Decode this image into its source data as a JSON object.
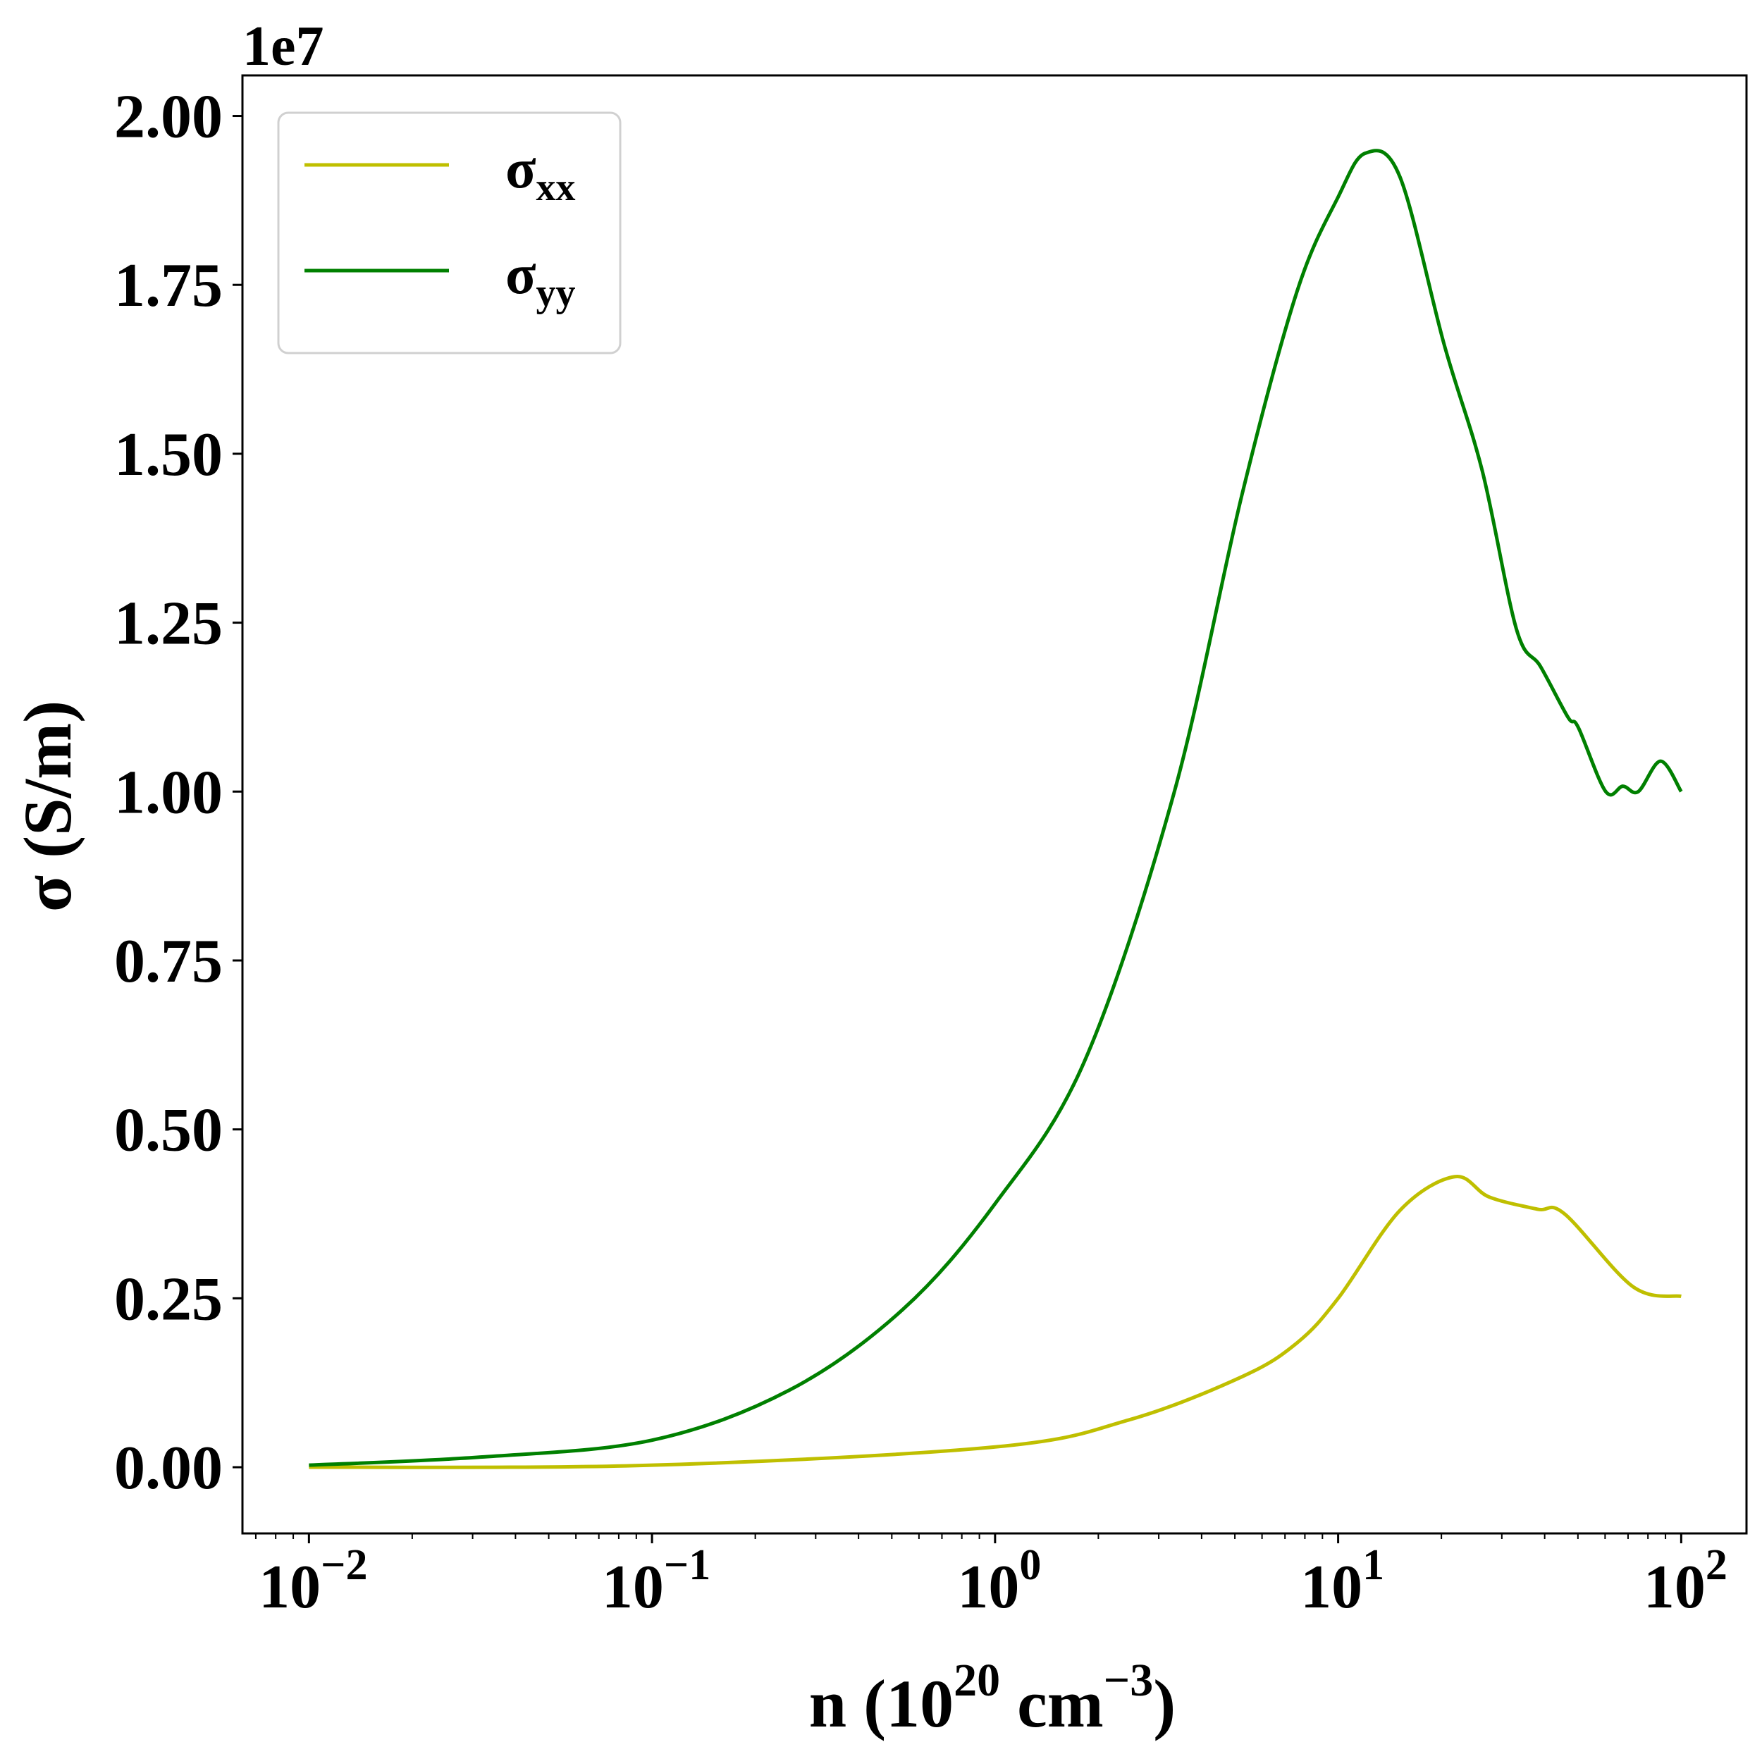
{
  "chart_data": {
    "type": "line",
    "title": "",
    "xlabel": {
      "main": "n (10",
      "sup1": "20",
      "mid": " cm",
      "sup2": "−3",
      "end": ")"
    },
    "ylabel": "σ (S/m)",
    "y_offset_label": "1e7",
    "xscale": "log",
    "xlim": [
      0.0064,
      155
    ],
    "ylim": [
      -0.098,
      2.06
    ],
    "y_ticks": [
      0,
      0.25,
      0.5,
      0.75,
      1.0,
      1.25,
      1.5,
      1.75,
      2.0
    ],
    "y_tick_labels": [
      "0.00",
      "0.25",
      "0.50",
      "0.75",
      "1.00",
      "1.25",
      "1.50",
      "1.75",
      "2.00"
    ],
    "x_ticks_exp": [
      -2,
      -1,
      0,
      1,
      2
    ],
    "x_tick_labels": [
      {
        "base": "10",
        "exp": "−2"
      },
      {
        "base": "10",
        "exp": "−1"
      },
      {
        "base": "10",
        "exp": "0"
      },
      {
        "base": "10",
        "exp": "1"
      },
      {
        "base": "10",
        "exp": "2"
      }
    ],
    "grid": false,
    "legend_position": "top-left",
    "series": [
      {
        "name": "σ",
        "sub": "xx",
        "color": "#bfbf00",
        "log10_x": [
          -2,
          -1,
          0,
          0.39,
          0.72,
          0.88,
          1.0,
          1.18,
          1.34,
          1.44,
          1.58,
          1.66,
          1.86,
          2.0
        ],
        "y": [
          0.0,
          0.003,
          0.03,
          0.07,
          0.134,
          0.184,
          0.25,
          0.38,
          0.43,
          0.4,
          0.382,
          0.375,
          0.267,
          0.253
        ]
      },
      {
        "name": "σ",
        "sub": "yy",
        "color": "#008000",
        "log10_x": [
          -2,
          -1.5,
          -1.0,
          -0.6,
          -0.27,
          0,
          0.26,
          0.52,
          0.72,
          0.88,
          1.0,
          1.08,
          1.18,
          1.31,
          1.42,
          1.52,
          1.59,
          1.67,
          1.7,
          1.78,
          1.83,
          1.875,
          1.94,
          2.0
        ],
        "y": [
          0.003,
          0.015,
          0.04,
          0.114,
          0.233,
          0.39,
          0.6,
          0.995,
          1.44,
          1.74,
          1.88,
          1.945,
          1.91,
          1.66,
          1.475,
          1.24,
          1.185,
          1.11,
          1.095,
          1.0,
          1.008,
          1.0,
          1.045,
          1.0
        ]
      }
    ]
  }
}
